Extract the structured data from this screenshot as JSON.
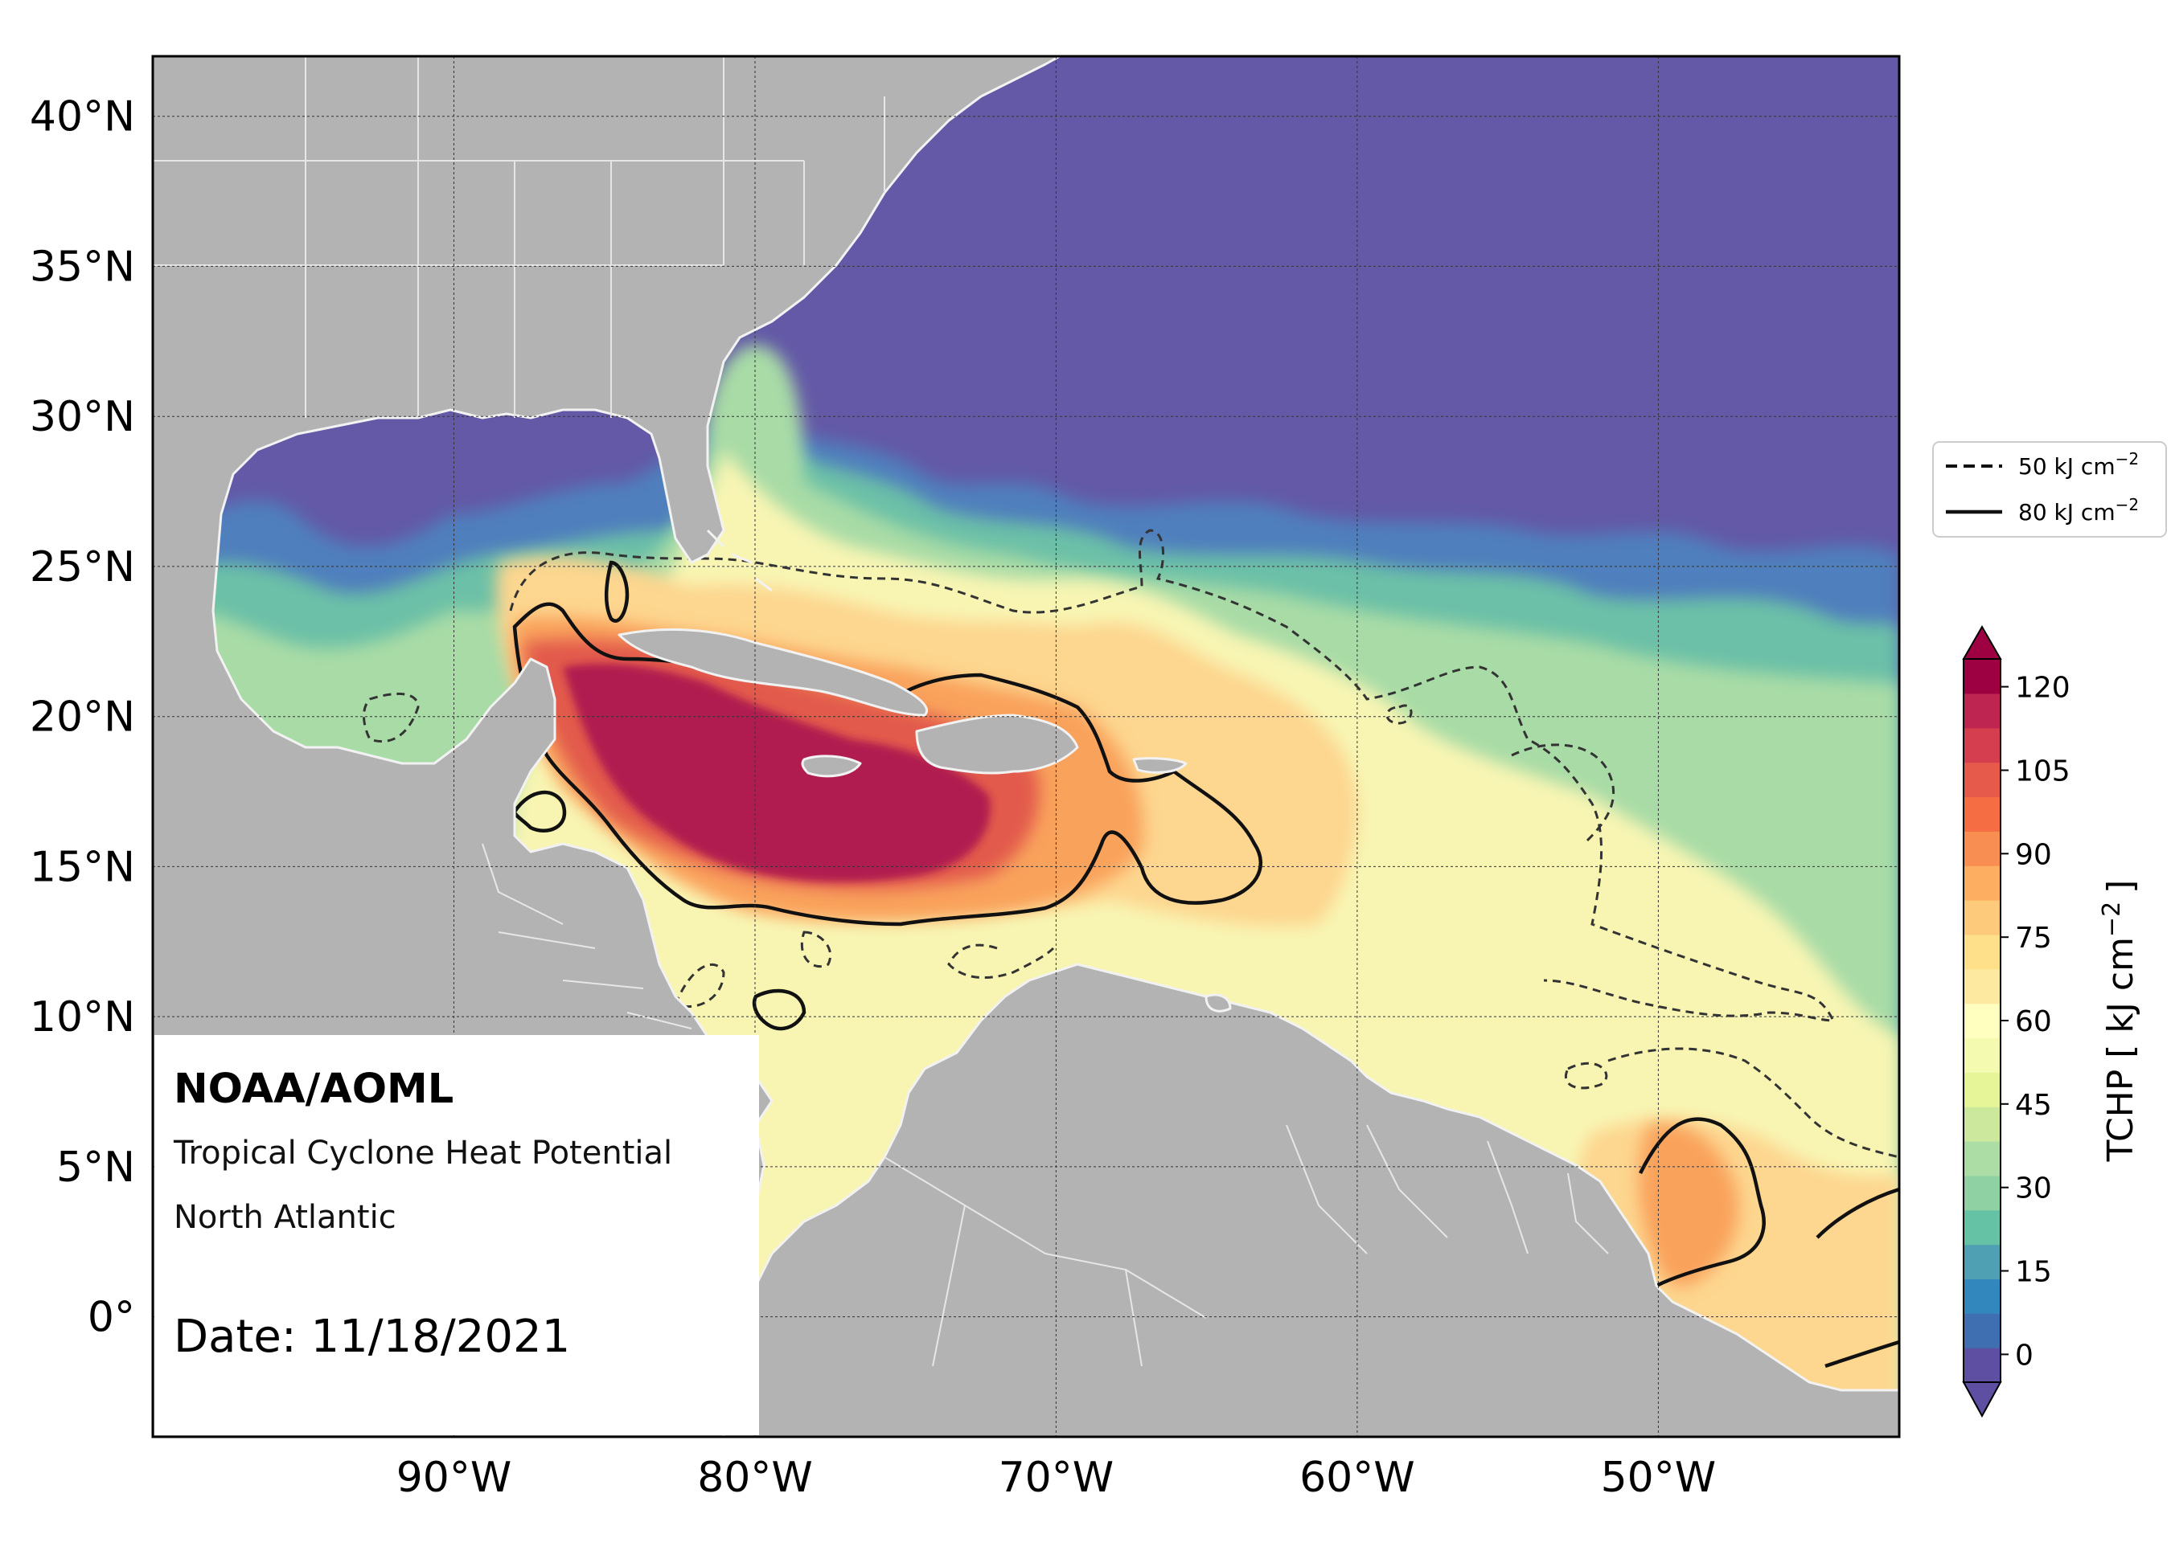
{
  "map": {
    "lat_ticks": [
      "40°N",
      "35°N",
      "30°N",
      "25°N",
      "20°N",
      "15°N",
      "10°N",
      "5°N",
      "0°"
    ],
    "lon_ticks": [
      "90°W",
      "80°W",
      "70°W",
      "60°W",
      "50°W"
    ],
    "extent": {
      "lon": [
        -100,
        -42
      ],
      "lat": [
        -4,
        42
      ]
    }
  },
  "info_box": {
    "org": "NOAA/AOML",
    "product": "Tropical Cyclone Heat Potential",
    "region": "North Atlantic",
    "date": "Date: 11/18/2021"
  },
  "legend": {
    "dashed": {
      "value": "50",
      "unit": "kJ cm",
      "exp": "−2"
    },
    "solid": {
      "value": "80",
      "unit": "kJ cm",
      "exp": "−2"
    }
  },
  "colorbar": {
    "ticks": [
      "120",
      "105",
      "90",
      "75",
      "60",
      "45",
      "30",
      "15",
      "0"
    ],
    "label_main": "TCHP [ kJ cm",
    "label_exp": "−2",
    "label_end": "]",
    "colors": [
      "#5e4fa2",
      "#3f6fb0",
      "#3288bd",
      "#4fa0b2",
      "#66c2a5",
      "#90d1a4",
      "#abdda4",
      "#cbe89d",
      "#e6f598",
      "#f4fab0",
      "#ffffbf",
      "#fee9a0",
      "#fee08b",
      "#fdc97a",
      "#fdae61",
      "#f98e52",
      "#f46d43",
      "#e55a4a",
      "#d53e4f",
      "#be2651",
      "#9e0142"
    ]
  },
  "colors": {
    "land": "#b3b3b3",
    "deep": "#6359a6",
    "blue": "#4f7fbd",
    "teal": "#6cc0a7",
    "lgreen": "#a8dba6",
    "yellow": "#f8f5b3",
    "lyellow": "#fcf3b4",
    "peach": "#fdd68f",
    "orange": "#f9a25c",
    "red": "#e25a4c",
    "crimson": "#b01d50"
  }
}
